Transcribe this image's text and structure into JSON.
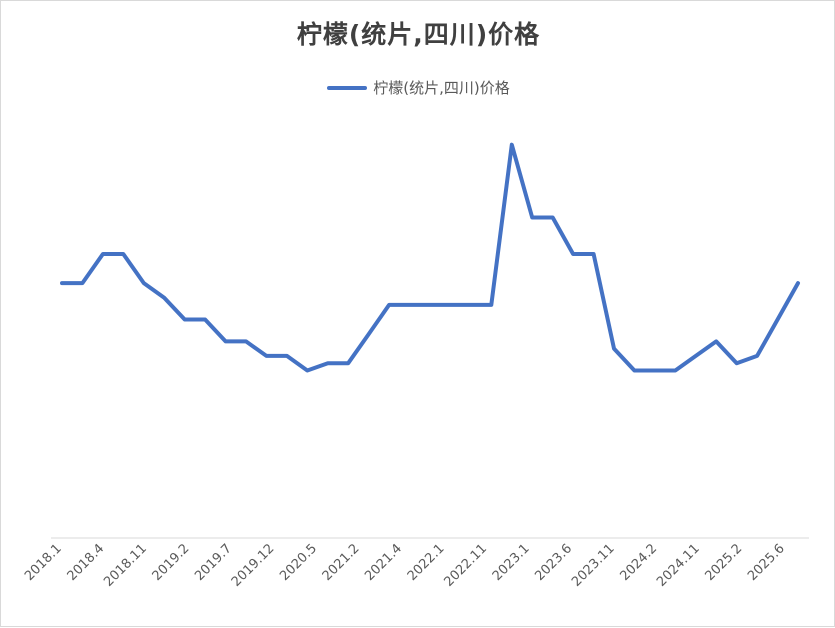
{
  "chart_data": {
    "type": "line",
    "title": "柠檬(统片,四川)价格",
    "xlabel": "",
    "ylabel": "",
    "legend": "top",
    "grid": false,
    "line_color": "#4472c4",
    "axis_color": "#d9d9d9",
    "x_tick_labels": [
      "2018.1",
      "2018.4",
      "2018.11",
      "2019.2",
      "2019.7",
      "2019.12",
      "2020.5",
      "2021.2",
      "2021.4",
      "2022.1",
      "2022.11",
      "2023.1",
      "2023.6",
      "2023.11",
      "2024.2",
      "2024.11",
      "2025.2",
      "2025.6"
    ],
    "series": [
      {
        "name": "柠檬(统片,四川)价格",
        "values": [
          5.8,
          5.8,
          6.2,
          6.2,
          5.8,
          5.6,
          5.3,
          5.3,
          5.0,
          5.0,
          4.8,
          4.8,
          4.6,
          4.7,
          4.7,
          5.1,
          5.5,
          5.5,
          5.5,
          5.5,
          5.5,
          5.5,
          7.7,
          6.7,
          6.7,
          6.2,
          6.2,
          4.9,
          4.6,
          4.6,
          4.6,
          4.8,
          5.0,
          4.7,
          4.8,
          5.3,
          5.8
        ]
      }
    ],
    "ylim": [
      2.3,
      8.3
    ]
  }
}
